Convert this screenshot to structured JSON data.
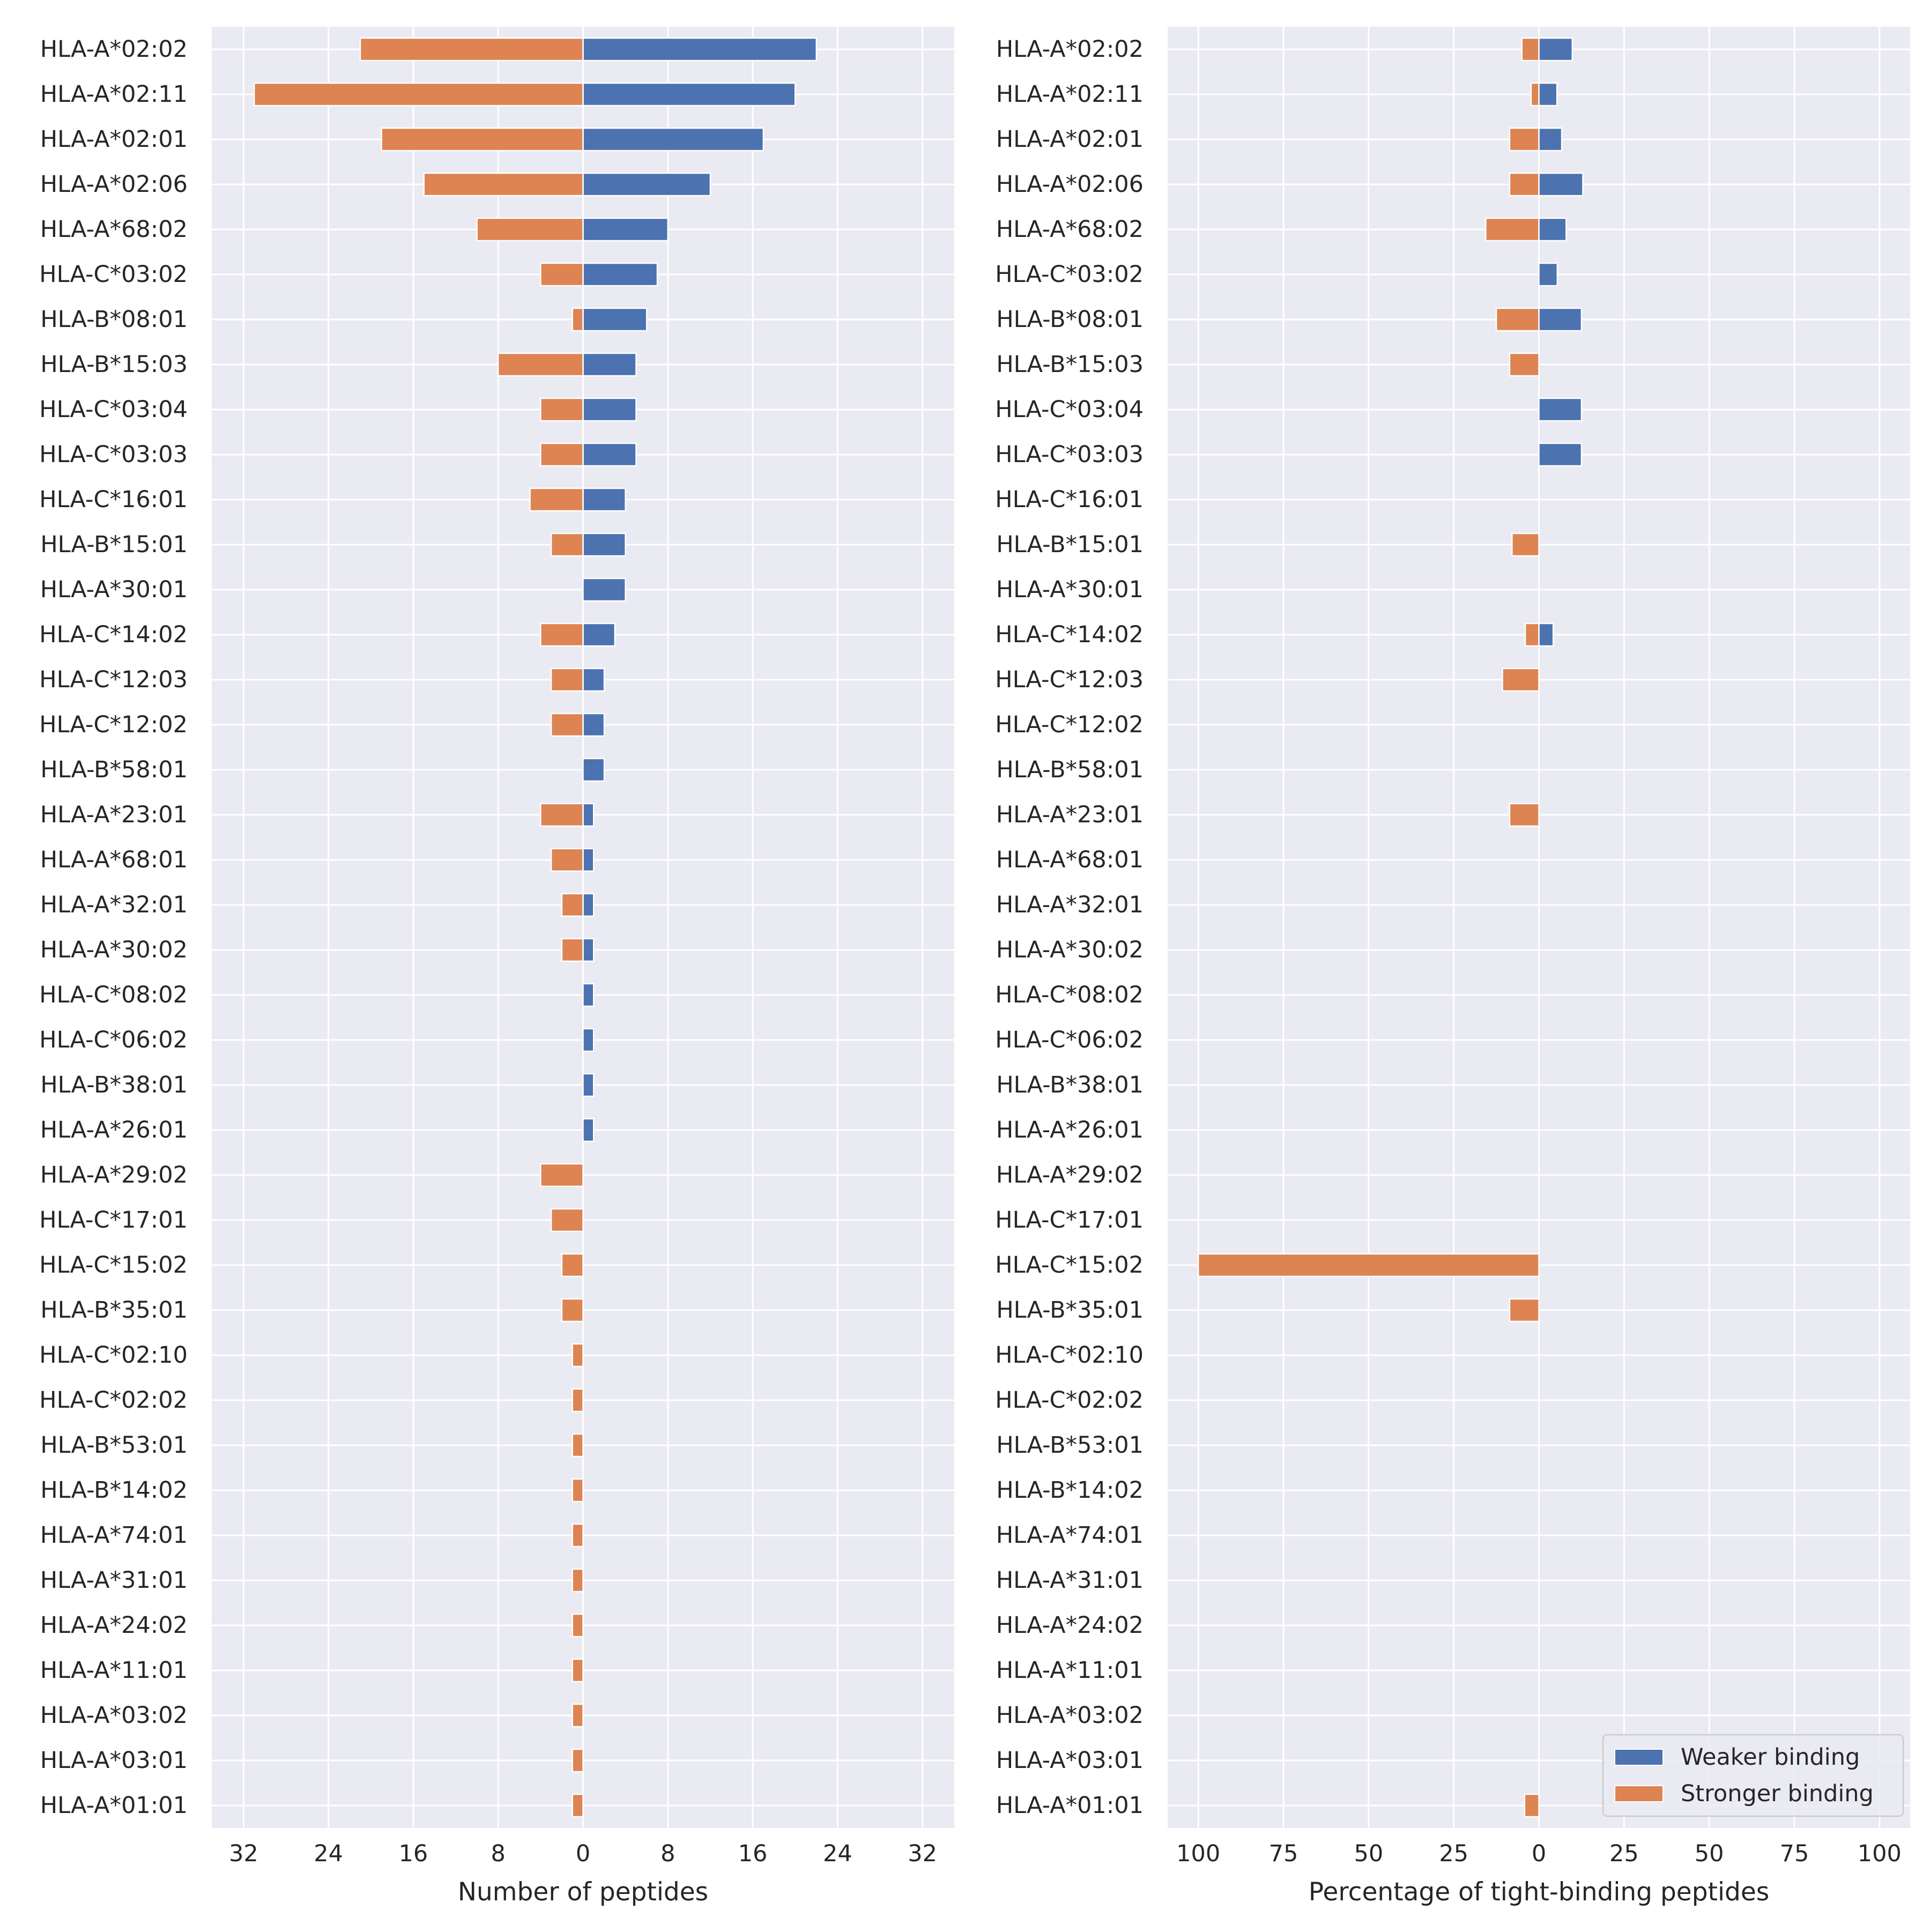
{
  "colors": {
    "panel_background": "#eaeaf2",
    "grid": "#ffffff",
    "weaker": "#4c72b0",
    "stronger": "#dd8452",
    "text": "#262626"
  },
  "legend": {
    "placement": "lower-right",
    "entries": [
      "Weaker binding",
      "Stronger binding"
    ]
  },
  "chart_data": [
    {
      "type": "bar",
      "orientation": "horizontal-diverging",
      "xlabel": "Number of peptides",
      "xlim": [
        -35,
        35
      ],
      "xticks": [
        -32,
        -24,
        -16,
        -8,
        0,
        8,
        16,
        24,
        32
      ],
      "xtick_labels": [
        "32",
        "24",
        "16",
        "8",
        "0",
        "8",
        "16",
        "24",
        "32"
      ],
      "grid": true,
      "categories": [
        "HLA-A*02:02",
        "HLA-A*02:11",
        "HLA-A*02:01",
        "HLA-A*02:06",
        "HLA-A*68:02",
        "HLA-C*03:02",
        "HLA-B*08:01",
        "HLA-B*15:03",
        "HLA-C*03:04",
        "HLA-C*03:03",
        "HLA-C*16:01",
        "HLA-B*15:01",
        "HLA-A*30:01",
        "HLA-C*14:02",
        "HLA-C*12:03",
        "HLA-C*12:02",
        "HLA-B*58:01",
        "HLA-A*23:01",
        "HLA-A*68:01",
        "HLA-A*32:01",
        "HLA-A*30:02",
        "HLA-C*08:02",
        "HLA-C*06:02",
        "HLA-B*38:01",
        "HLA-A*26:01",
        "HLA-A*29:02",
        "HLA-C*17:01",
        "HLA-C*15:02",
        "HLA-B*35:01",
        "HLA-C*02:10",
        "HLA-C*02:02",
        "HLA-B*53:01",
        "HLA-B*14:02",
        "HLA-A*74:01",
        "HLA-A*31:01",
        "HLA-A*24:02",
        "HLA-A*11:01",
        "HLA-A*03:02",
        "HLA-A*03:01",
        "HLA-A*01:01"
      ],
      "series": [
        {
          "name": "Weaker binding",
          "direction": "right",
          "values": [
            22,
            20,
            17,
            12,
            8,
            7,
            6,
            5,
            5,
            5,
            4,
            4,
            4,
            3,
            2,
            2,
            2,
            1,
            1,
            1,
            1,
            1,
            1,
            1,
            1,
            0,
            0,
            0,
            0,
            0,
            0,
            0,
            0,
            0,
            0,
            0,
            0,
            0,
            0,
            0
          ]
        },
        {
          "name": "Stronger binding",
          "direction": "left",
          "values": [
            21,
            31,
            19,
            15,
            10,
            4,
            1,
            8,
            4,
            4,
            5,
            3,
            0,
            4,
            3,
            3,
            0,
            4,
            3,
            2,
            2,
            0,
            0,
            0,
            0,
            4,
            3,
            2,
            2,
            1,
            1,
            1,
            1,
            1,
            1,
            1,
            1,
            1,
            1,
            1
          ]
        }
      ]
    },
    {
      "type": "bar",
      "orientation": "horizontal-diverging",
      "xlabel": "Percentage of tight-binding peptides",
      "xlim": [
        -109,
        109
      ],
      "xticks": [
        -100,
        -75,
        -50,
        -25,
        0,
        25,
        50,
        75,
        100
      ],
      "xtick_labels": [
        "100",
        "75",
        "50",
        "25",
        "0",
        "25",
        "50",
        "75",
        "100"
      ],
      "grid": true,
      "categories": [
        "HLA-A*02:02",
        "HLA-A*02:11",
        "HLA-A*02:01",
        "HLA-A*02:06",
        "HLA-A*68:02",
        "HLA-C*03:02",
        "HLA-B*08:01",
        "HLA-B*15:03",
        "HLA-C*03:04",
        "HLA-C*03:03",
        "HLA-C*16:01",
        "HLA-B*15:01",
        "HLA-A*30:01",
        "HLA-C*14:02",
        "HLA-C*12:03",
        "HLA-C*12:02",
        "HLA-B*58:01",
        "HLA-A*23:01",
        "HLA-A*68:01",
        "HLA-A*32:01",
        "HLA-A*30:02",
        "HLA-C*08:02",
        "HLA-C*06:02",
        "HLA-B*38:01",
        "HLA-A*26:01",
        "HLA-A*29:02",
        "HLA-C*17:01",
        "HLA-C*15:02",
        "HLA-B*35:01",
        "HLA-C*02:10",
        "HLA-C*02:02",
        "HLA-B*53:01",
        "HLA-B*14:02",
        "HLA-A*74:01",
        "HLA-A*31:01",
        "HLA-A*24:02",
        "HLA-A*11:01",
        "HLA-A*03:02",
        "HLA-A*03:01",
        "HLA-A*01:01"
      ],
      "series": [
        {
          "name": "Weaker binding",
          "direction": "right",
          "values": [
            9.8,
            5.3,
            6.7,
            12.9,
            8.0,
            5.4,
            12.5,
            0,
            12.5,
            12.5,
            0,
            0,
            0,
            4.2,
            0,
            0,
            0,
            0,
            0,
            0,
            0,
            0,
            0,
            0,
            0,
            0,
            0,
            0,
            0,
            0,
            0,
            0,
            0,
            0,
            0,
            0,
            0,
            0,
            0,
            0
          ]
        },
        {
          "name": "Stronger binding",
          "direction": "left",
          "values": [
            5.0,
            2.3,
            8.6,
            8.6,
            15.6,
            0,
            12.5,
            8.6,
            0,
            0,
            0,
            7.9,
            0,
            4.0,
            10.7,
            0,
            0,
            8.6,
            0,
            0,
            0,
            0,
            0,
            0,
            0,
            0,
            0,
            100,
            8.6,
            0,
            0,
            0,
            0,
            0,
            0,
            0,
            0,
            0,
            0,
            4.2
          ]
        }
      ]
    }
  ]
}
